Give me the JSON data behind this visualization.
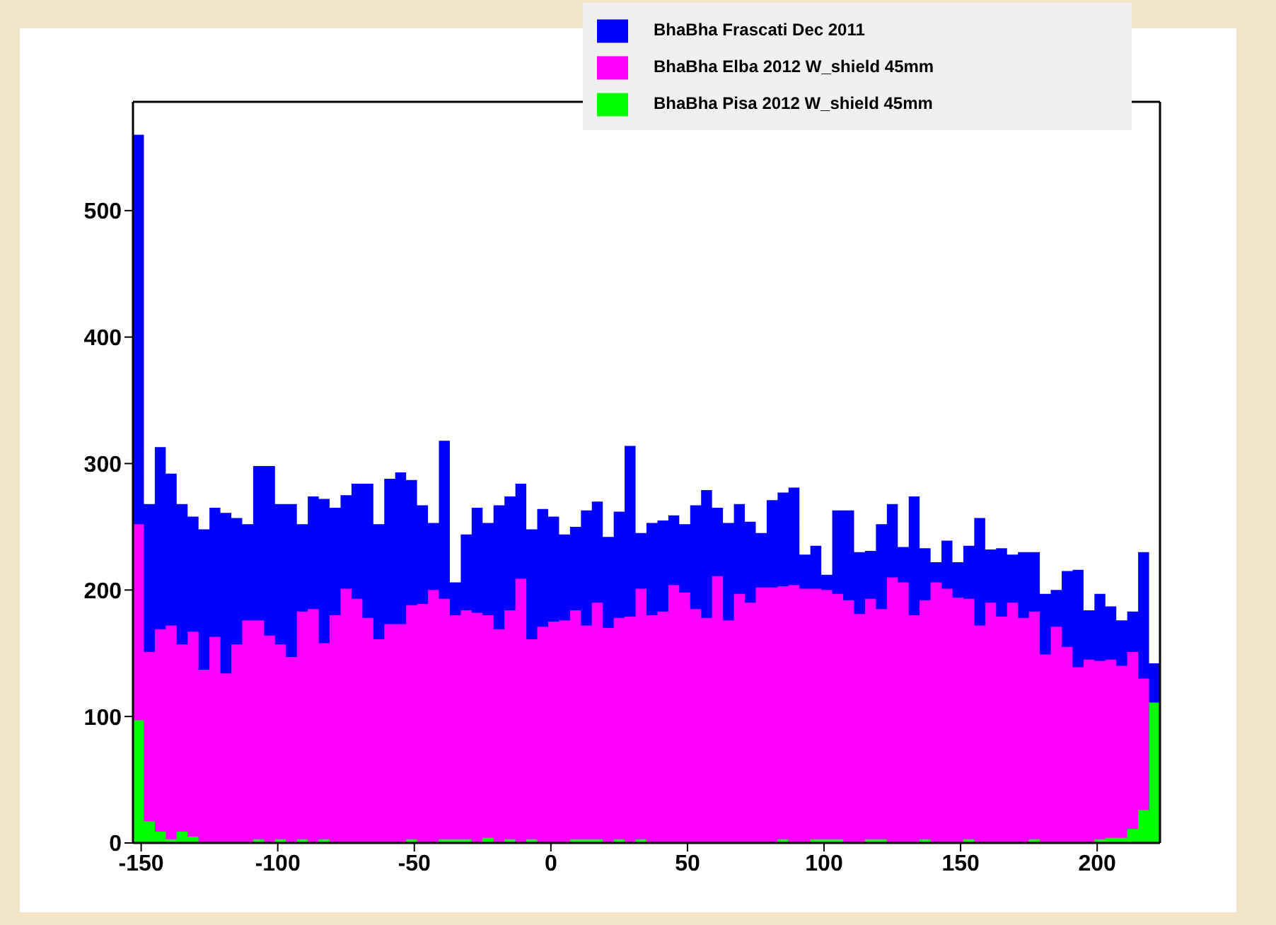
{
  "chart_data": {
    "type": "histogram",
    "bins": [
      -153,
      -149,
      -145,
      -141,
      -137,
      -133,
      -129,
      -125,
      -121,
      -117,
      -113,
      -109,
      -105,
      -101,
      -97,
      -93,
      -89,
      -85,
      -81,
      -77,
      -73,
      -69,
      -65,
      -61,
      -57,
      -53,
      -49,
      -45,
      -41,
      -37,
      -33,
      -29,
      -25,
      -21,
      -17,
      -13,
      -9,
      -5,
      -1,
      3,
      7,
      11,
      15,
      19,
      23,
      27,
      31,
      35,
      39,
      43,
      47,
      51,
      55,
      59,
      63,
      67,
      71,
      75,
      79,
      83,
      87,
      91,
      95,
      99,
      103,
      107,
      111,
      115,
      119,
      123,
      127,
      131,
      135,
      139,
      143,
      147,
      151,
      155,
      159,
      163,
      167,
      171,
      175,
      179,
      183,
      187,
      191,
      195,
      199,
      203,
      207,
      211,
      215,
      219,
      223
    ],
    "series": [
      {
        "name": "BhaBha Frascati Dec 2011",
        "color": "#0000ff",
        "values": [
          560,
          268,
          313,
          292,
          268,
          258,
          248,
          265,
          261,
          257,
          252,
          298,
          298,
          268,
          268,
          252,
          274,
          272,
          265,
          275,
          284,
          284,
          252,
          288,
          293,
          287,
          267,
          253,
          318,
          206,
          244,
          265,
          253,
          267,
          274,
          284,
          248,
          264,
          258,
          244,
          250,
          263,
          270,
          242,
          262,
          314,
          245,
          253,
          255,
          259,
          252,
          267,
          279,
          265,
          253,
          268,
          254,
          245,
          271,
          277,
          281,
          228,
          235,
          212,
          263,
          263,
          230,
          231,
          252,
          268,
          234,
          274,
          233,
          222,
          239,
          222,
          235,
          257,
          232,
          233,
          228,
          230,
          230,
          197,
          200,
          215,
          216,
          184,
          197,
          187,
          176,
          183,
          230,
          142
        ]
      },
      {
        "name": "BhaBha Elba 2012 W_shield 45mm",
        "color": "#ff00ff",
        "values": [
          252,
          151,
          169,
          172,
          157,
          167,
          137,
          163,
          134,
          157,
          176,
          176,
          164,
          157,
          147,
          183,
          185,
          158,
          180,
          201,
          193,
          178,
          161,
          173,
          173,
          188,
          189,
          200,
          193,
          180,
          184,
          182,
          180,
          169,
          184,
          209,
          161,
          171,
          175,
          176,
          184,
          172,
          190,
          170,
          178,
          179,
          201,
          180,
          183,
          204,
          198,
          185,
          178,
          211,
          176,
          197,
          190,
          202,
          202,
          203,
          204,
          201,
          201,
          200,
          197,
          192,
          181,
          193,
          185,
          210,
          206,
          180,
          192,
          206,
          201,
          194,
          193,
          172,
          190,
          179,
          190,
          178,
          183,
          149,
          171,
          155,
          139,
          145,
          144,
          145,
          140,
          151,
          130,
          0
        ]
      },
      {
        "name": "BhaBha Pisa 2012 W_shield 45mm",
        "color": "#00ff00",
        "values": [
          97,
          17,
          9,
          3,
          9,
          5,
          0,
          0,
          0,
          0,
          0,
          3,
          0,
          3,
          0,
          3,
          0,
          3,
          0,
          0,
          0,
          0,
          0,
          0,
          0,
          3,
          0,
          0,
          3,
          3,
          3,
          0,
          4,
          0,
          3,
          0,
          3,
          0,
          0,
          0,
          3,
          3,
          3,
          0,
          3,
          0,
          3,
          0,
          0,
          0,
          0,
          0,
          0,
          0,
          0,
          0,
          0,
          0,
          0,
          3,
          0,
          0,
          3,
          3,
          3,
          0,
          0,
          3,
          3,
          0,
          0,
          0,
          3,
          0,
          0,
          0,
          3,
          0,
          0,
          0,
          0,
          0,
          3,
          0,
          0,
          0,
          0,
          0,
          3,
          4,
          4,
          11,
          26,
          111
        ]
      }
    ],
    "xlim": [
      -153,
      223
    ],
    "xticks": [
      -150,
      -100,
      -50,
      0,
      50,
      100,
      150,
      200
    ],
    "ylim": [
      0,
      586
    ],
    "yticks": [
      0,
      100,
      200,
      300,
      400,
      500
    ],
    "legend": "top right",
    "grid": false
  }
}
